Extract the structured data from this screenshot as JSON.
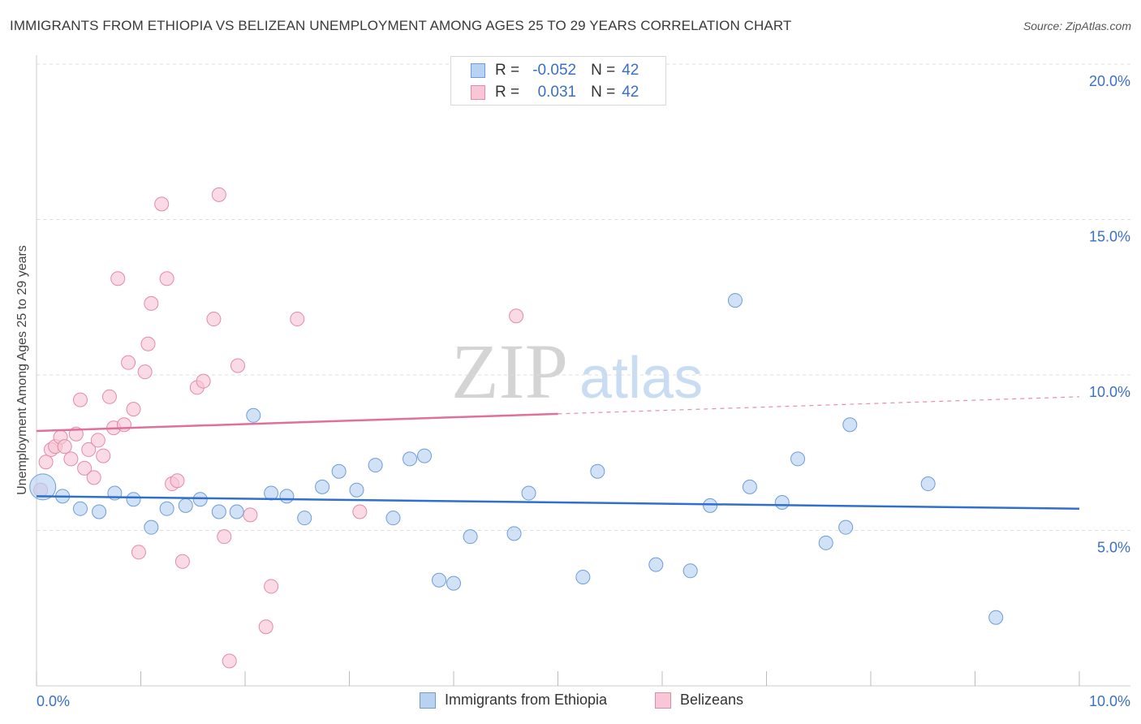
{
  "title": "IMMIGRANTS FROM ETHIOPIA VS BELIZEAN UNEMPLOYMENT AMONG AGES 25 TO 29 YEARS CORRELATION CHART",
  "source": "Source: ZipAtlas.com",
  "watermark": {
    "zip": "ZIP",
    "atlas": "atlas"
  },
  "legend_top": {
    "rows": [
      {
        "r_label": "R =",
        "r_value": "-0.052",
        "n_label": "N =",
        "n_value": "42"
      },
      {
        "r_label": "R =",
        "r_value": "0.031",
        "n_label": "N =",
        "n_value": "42"
      }
    ]
  },
  "bottom_legend": {
    "series1": "Immigrants from Ethiopia",
    "series2": "Belizeans"
  },
  "colors": {
    "blue_fill": "#b8d2f2",
    "blue_stroke": "#6e9cd8",
    "blue_line": "#2f6fcf",
    "pink_fill": "#f8c6d5",
    "pink_stroke": "#e48aa6",
    "pink_line": "#e0709a",
    "tick_label": "#3a6fc8",
    "grid": "#dddddd"
  },
  "chart_data": {
    "type": "scatter",
    "title": "IMMIGRANTS FROM ETHIOPIA VS BELIZEAN UNEMPLOYMENT AMONG AGES 25 TO 29 YEARS CORRELATION CHART",
    "xlabel": "",
    "ylabel": "Unemployment Among Ages 25 to 29 years",
    "xlim": [
      0,
      10
    ],
    "ylim": [
      0,
      20
    ],
    "x_ticks": [
      0,
      1,
      2,
      3,
      4,
      5,
      6,
      7,
      8,
      9,
      10
    ],
    "x_tick_labels": {
      "left": "0.0%",
      "right": "10.0%"
    },
    "y_ticks": [
      5,
      10,
      15,
      20
    ],
    "y_tick_labels": [
      "5.0%",
      "10.0%",
      "15.0%",
      "20.0%"
    ],
    "series": [
      {
        "name": "Immigrants from Ethiopia",
        "color": "blue",
        "r": -0.052,
        "n": 42,
        "trend": {
          "x0": 0,
          "y0": 6.1,
          "x1": 10,
          "y1": 5.7,
          "dashed_from": null
        },
        "points": [
          {
            "x": 0.06,
            "y": 6.4,
            "big": true
          },
          {
            "x": 0.25,
            "y": 6.1
          },
          {
            "x": 0.42,
            "y": 5.7
          },
          {
            "x": 0.6,
            "y": 5.6
          },
          {
            "x": 0.75,
            "y": 6.2
          },
          {
            "x": 0.93,
            "y": 6.0
          },
          {
            "x": 1.1,
            "y": 5.1
          },
          {
            "x": 1.25,
            "y": 5.7
          },
          {
            "x": 1.43,
            "y": 5.8
          },
          {
            "x": 1.57,
            "y": 6.0
          },
          {
            "x": 1.75,
            "y": 5.6
          },
          {
            "x": 1.92,
            "y": 5.6
          },
          {
            "x": 2.08,
            "y": 8.7
          },
          {
            "x": 2.25,
            "y": 6.2
          },
          {
            "x": 2.4,
            "y": 6.1
          },
          {
            "x": 2.57,
            "y": 5.4
          },
          {
            "x": 2.74,
            "y": 6.4
          },
          {
            "x": 2.9,
            "y": 6.9
          },
          {
            "x": 3.07,
            "y": 6.3
          },
          {
            "x": 3.25,
            "y": 7.1
          },
          {
            "x": 3.42,
            "y": 5.4
          },
          {
            "x": 3.58,
            "y": 7.3
          },
          {
            "x": 3.72,
            "y": 7.4
          },
          {
            "x": 3.86,
            "y": 3.4
          },
          {
            "x": 4.0,
            "y": 3.3
          },
          {
            "x": 4.16,
            "y": 4.8
          },
          {
            "x": 4.58,
            "y": 4.9
          },
          {
            "x": 4.72,
            "y": 6.2
          },
          {
            "x": 5.24,
            "y": 3.5
          },
          {
            "x": 5.38,
            "y": 6.9
          },
          {
            "x": 5.94,
            "y": 3.9
          },
          {
            "x": 6.27,
            "y": 3.7
          },
          {
            "x": 6.46,
            "y": 5.8
          },
          {
            "x": 6.7,
            "y": 12.4
          },
          {
            "x": 6.84,
            "y": 6.4
          },
          {
            "x": 7.15,
            "y": 5.9
          },
          {
            "x": 7.3,
            "y": 7.3
          },
          {
            "x": 7.57,
            "y": 4.6
          },
          {
            "x": 7.76,
            "y": 5.1
          },
          {
            "x": 7.8,
            "y": 8.4
          },
          {
            "x": 8.55,
            "y": 6.5
          },
          {
            "x": 9.2,
            "y": 2.2
          }
        ]
      },
      {
        "name": "Belizeans",
        "color": "pink",
        "r": 0.031,
        "n": 42,
        "trend": {
          "x0": 0,
          "y0": 8.2,
          "x1": 10,
          "y1": 9.3,
          "dashed_from": 5.0
        },
        "points": [
          {
            "x": 0.04,
            "y": 6.3
          },
          {
            "x": 0.09,
            "y": 7.2
          },
          {
            "x": 0.14,
            "y": 7.6
          },
          {
            "x": 0.18,
            "y": 7.7
          },
          {
            "x": 0.23,
            "y": 8.0
          },
          {
            "x": 0.27,
            "y": 7.7
          },
          {
            "x": 0.33,
            "y": 7.3
          },
          {
            "x": 0.38,
            "y": 8.1
          },
          {
            "x": 0.42,
            "y": 9.2
          },
          {
            "x": 0.46,
            "y": 7.0
          },
          {
            "x": 0.5,
            "y": 7.6
          },
          {
            "x": 0.55,
            "y": 6.7
          },
          {
            "x": 0.59,
            "y": 7.9
          },
          {
            "x": 0.64,
            "y": 7.4
          },
          {
            "x": 0.7,
            "y": 9.3
          },
          {
            "x": 0.74,
            "y": 8.3
          },
          {
            "x": 0.78,
            "y": 13.1
          },
          {
            "x": 0.84,
            "y": 8.4
          },
          {
            "x": 0.88,
            "y": 10.4
          },
          {
            "x": 0.93,
            "y": 8.9
          },
          {
            "x": 0.98,
            "y": 4.3
          },
          {
            "x": 1.04,
            "y": 10.1
          },
          {
            "x": 1.07,
            "y": 11.0
          },
          {
            "x": 1.1,
            "y": 12.3
          },
          {
            "x": 1.2,
            "y": 15.5
          },
          {
            "x": 1.25,
            "y": 13.1
          },
          {
            "x": 1.3,
            "y": 6.5
          },
          {
            "x": 1.35,
            "y": 6.6
          },
          {
            "x": 1.4,
            "y": 4.0
          },
          {
            "x": 1.54,
            "y": 9.6
          },
          {
            "x": 1.6,
            "y": 9.8
          },
          {
            "x": 1.7,
            "y": 11.8
          },
          {
            "x": 1.75,
            "y": 15.8
          },
          {
            "x": 1.8,
            "y": 4.8
          },
          {
            "x": 1.85,
            "y": 0.8
          },
          {
            "x": 1.93,
            "y": 10.3
          },
          {
            "x": 2.05,
            "y": 5.5
          },
          {
            "x": 2.2,
            "y": 1.9
          },
          {
            "x": 2.25,
            "y": 3.2
          },
          {
            "x": 2.5,
            "y": 11.8
          },
          {
            "x": 3.1,
            "y": 5.6
          },
          {
            "x": 4.6,
            "y": 11.9
          }
        ]
      }
    ]
  }
}
